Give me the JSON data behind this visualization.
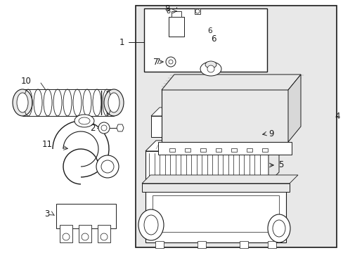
{
  "bg_color": "#ffffff",
  "line_color": "#1a1a1a",
  "gray_fill": "#d8d8d8",
  "light_gray": "#e8e8e8",
  "white": "#ffffff"
}
